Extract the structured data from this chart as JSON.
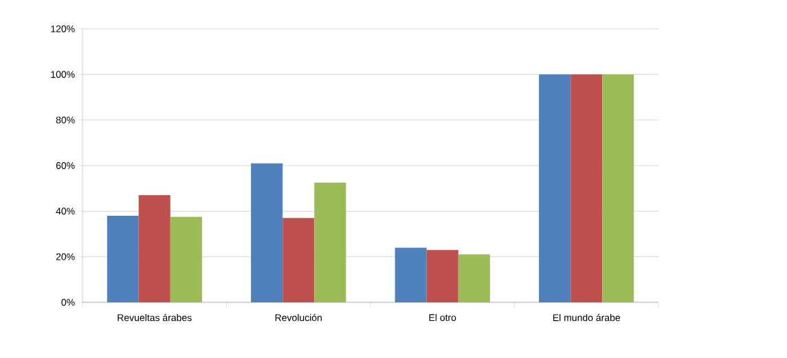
{
  "chart_data": {
    "type": "bar",
    "categories": [
      "Revueltas árabes",
      "Revolución",
      "El otro",
      "El mundo árabe"
    ],
    "series": [
      {
        "color": "#4f81bd",
        "values": [
          38,
          61,
          24,
          100
        ]
      },
      {
        "color": "#c0504d",
        "values": [
          47,
          37,
          23,
          100
        ]
      },
      {
        "color": "#9bbb59",
        "values": [
          37.5,
          52.5,
          21,
          100
        ]
      }
    ],
    "ylim": [
      0,
      120
    ],
    "yticks": [
      {
        "value": 0,
        "label": "0%"
      },
      {
        "value": 20,
        "label": "20%"
      },
      {
        "value": 40,
        "label": "40%"
      },
      {
        "value": 60,
        "label": "60%"
      },
      {
        "value": 80,
        "label": "80%"
      },
      {
        "value": 100,
        "label": "100%"
      },
      {
        "value": 120,
        "label": "120%"
      }
    ],
    "grid": "y"
  }
}
